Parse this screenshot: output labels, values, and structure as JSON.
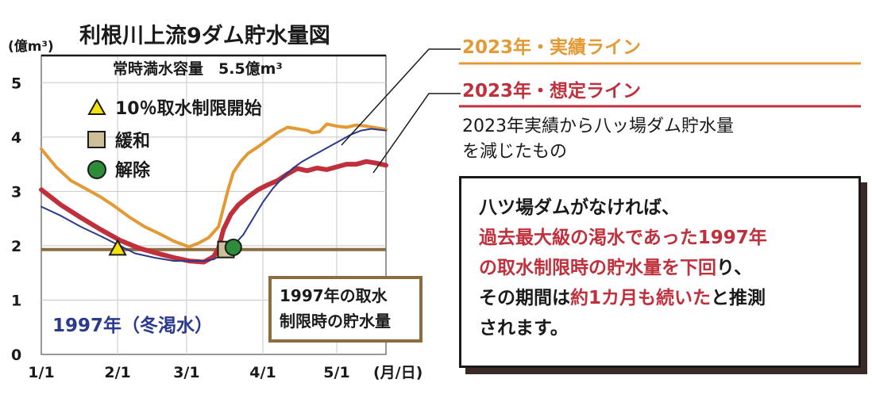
{
  "chart_data": {
    "type": "line",
    "title": "利根川上流9ダム貯水量図",
    "y_unit": "(億m³)",
    "ylim": [
      0,
      5.5
    ],
    "y_ticks": [
      "0",
      "1",
      "2",
      "3",
      "4",
      "5"
    ],
    "x_ticks": [
      "1/1",
      "2/1",
      "3/1",
      "4/1",
      "5/1"
    ],
    "x_unit": "(月/日)",
    "capacity_label": "常時満水容量　5.5億m³",
    "capacity_value": 5.5,
    "threshold_value": 1.93,
    "threshold_label_lines": [
      "1997年の取水",
      "制限時の貯水量"
    ],
    "legend_markers": [
      {
        "label": "10％取水制限開始",
        "shape": "triangle",
        "color": "#f2e20a"
      },
      {
        "label": "緩和",
        "shape": "square",
        "color": "#cdbf9a"
      },
      {
        "label": "解除",
        "shape": "circle",
        "color": "#2e8b3a"
      }
    ],
    "series": [
      {
        "name": "2023年・実績ライン",
        "color": "#e39a35",
        "points": [
          [
            0,
            3.78
          ],
          [
            6,
            3.45
          ],
          [
            12,
            3.2
          ],
          [
            18,
            3.05
          ],
          [
            24,
            2.9
          ],
          [
            30,
            2.72
          ],
          [
            36,
            2.52
          ],
          [
            42,
            2.35
          ],
          [
            48,
            2.22
          ],
          [
            54,
            2.08
          ],
          [
            60,
            1.98
          ],
          [
            64,
            2.05
          ],
          [
            68,
            2.15
          ],
          [
            72,
            2.35
          ],
          [
            74,
            2.7
          ],
          [
            76,
            3.05
          ],
          [
            78,
            3.35
          ],
          [
            81,
            3.55
          ],
          [
            84,
            3.7
          ],
          [
            88,
            3.82
          ],
          [
            92,
            3.95
          ],
          [
            96,
            4.08
          ],
          [
            100,
            4.18
          ],
          [
            104,
            4.15
          ],
          [
            108,
            4.12
          ],
          [
            110,
            4.08
          ],
          [
            113,
            4.1
          ],
          [
            116,
            4.24
          ],
          [
            120,
            4.2
          ],
          [
            124,
            4.18
          ],
          [
            128,
            4.22
          ],
          [
            132,
            4.2
          ],
          [
            136,
            4.17
          ],
          [
            140,
            4.14
          ]
        ]
      },
      {
        "name": "2023年・想定ライン",
        "color": "#c0303c",
        "points": [
          [
            0,
            3.03
          ],
          [
            8,
            2.75
          ],
          [
            16,
            2.52
          ],
          [
            24,
            2.3
          ],
          [
            32,
            2.1
          ],
          [
            40,
            1.95
          ],
          [
            48,
            1.85
          ],
          [
            54,
            1.78
          ],
          [
            60,
            1.72
          ],
          [
            66,
            1.7
          ],
          [
            70,
            1.8
          ],
          [
            72,
            1.95
          ],
          [
            74,
            2.3
          ],
          [
            77,
            2.58
          ],
          [
            80,
            2.75
          ],
          [
            84,
            2.9
          ],
          [
            88,
            3.03
          ],
          [
            92,
            3.12
          ],
          [
            96,
            3.2
          ],
          [
            100,
            3.32
          ],
          [
            104,
            3.42
          ],
          [
            108,
            3.38
          ],
          [
            112,
            3.43
          ],
          [
            116,
            3.4
          ],
          [
            120,
            3.45
          ],
          [
            124,
            3.5
          ],
          [
            128,
            3.5
          ],
          [
            132,
            3.55
          ],
          [
            136,
            3.52
          ],
          [
            140,
            3.48
          ]
        ]
      },
      {
        "name": "1997年（冬渇水）",
        "color": "#2b3a8c",
        "points": [
          [
            0,
            2.72
          ],
          [
            8,
            2.55
          ],
          [
            16,
            2.35
          ],
          [
            24,
            2.18
          ],
          [
            31,
            2.02
          ],
          [
            38,
            1.86
          ],
          [
            46,
            1.78
          ],
          [
            54,
            1.72
          ],
          [
            60,
            1.72
          ],
          [
            66,
            1.72
          ],
          [
            70,
            1.75
          ],
          [
            74,
            1.85
          ],
          [
            78,
            2.0
          ],
          [
            82,
            2.2
          ],
          [
            86,
            2.5
          ],
          [
            90,
            2.8
          ],
          [
            94,
            3.05
          ],
          [
            98,
            3.25
          ],
          [
            102,
            3.42
          ],
          [
            106,
            3.55
          ],
          [
            110,
            3.65
          ],
          [
            114,
            3.75
          ],
          [
            118,
            3.85
          ],
          [
            122,
            3.95
          ],
          [
            126,
            4.05
          ],
          [
            130,
            4.12
          ],
          [
            134,
            4.15
          ],
          [
            140,
            4.12
          ]
        ]
      }
    ],
    "markers": [
      {
        "type": "triangle",
        "x": 31,
        "y": 1.95,
        "color": "#f2e20a"
      },
      {
        "type": "square",
        "x": 75,
        "y": 1.93,
        "color": "#cdbf9a"
      },
      {
        "type": "circle",
        "x": 78,
        "y": 1.97,
        "color": "#2e8b3a"
      }
    ],
    "grid": true
  },
  "legend_right": {
    "series1_label": "2023年・実績ライン",
    "series2_label": "2023年・想定ライン",
    "series2_note_line1": "2023年実績から八ッ場ダム貯水量",
    "series2_note_line2": "を減じたもの",
    "series3_label": "1997年（冬渇水）"
  },
  "callout": {
    "line1": "八ツ場ダムがなければ、",
    "line2": "過去最大級の渇水であった1997年",
    "line3_red": "の取水制限時の貯水量を下回",
    "line3_tail": "り、",
    "line4_a": "その期間は",
    "line4_red": "約1カ月も続いた",
    "line4_b": "と推測",
    "line5": "されます。"
  },
  "colors": {
    "orange": "#e39a35",
    "red": "#c0303c",
    "navy": "#2b3a8c",
    "threshold": "#8b6d3f"
  }
}
